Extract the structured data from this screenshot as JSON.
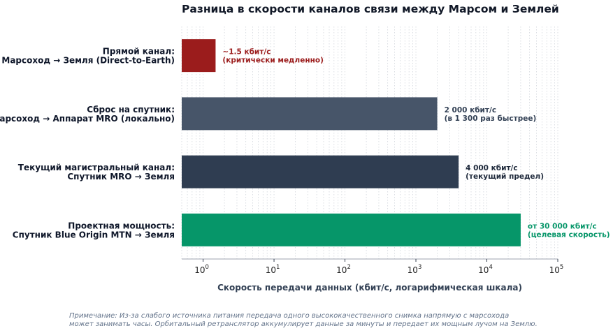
{
  "chart_data": {
    "type": "bar",
    "orientation": "horizontal",
    "title": "Разница в скорости каналов связи между Марсом и Землей",
    "xlabel": "Скорость передачи данных (кбит/с, логарифмическая шкала)",
    "xscale": "log",
    "xlim": [
      0.5,
      100000
    ],
    "grid": "x-minor-dotted",
    "categories": [
      {
        "line1": "Прямой канал:",
        "line2": "Марсоход → Земля (Direct-to-Earth)"
      },
      {
        "line1": "Сброс на спутник:",
        "line2": "Марсоход → Аппарат MRO (локально)"
      },
      {
        "line1": "Текущий магистральный канал:",
        "line2": "Спутник MRO → Земля"
      },
      {
        "line1": "Проектная мощность:",
        "line2": "Спутник Blue Origin MTN → Земля"
      }
    ],
    "values": [
      1.5,
      2000,
      4000,
      30000
    ],
    "colors": [
      "#9b1c1c",
      "#475569",
      "#2f3d51",
      "#069669"
    ],
    "data_labels": [
      {
        "line1": "~1.5 кбит/с",
        "line2": "(критически медленно)",
        "color": "#9b1c1c"
      },
      {
        "line1": "2 000 кбит/с",
        "line2": "(в 1 300 раз быстрее)",
        "color": "#334155"
      },
      {
        "line1": "4 000 кбит/с",
        "line2": "(текущий предел)",
        "color": "#1e293b"
      },
      {
        "line1": "от 30 000 кбит/с",
        "line2": "(целевая скорость)",
        "color": "#069669"
      }
    ],
    "ticks": [
      {
        "base": "10",
        "exp": "0"
      },
      {
        "base": "10",
        "exp": "1"
      },
      {
        "base": "10",
        "exp": "2"
      },
      {
        "base": "10",
        "exp": "3"
      },
      {
        "base": "10",
        "exp": "4"
      },
      {
        "base": "10",
        "exp": "5"
      }
    ]
  },
  "note": {
    "line1": "Примечание: Из-за слабого источника питания передача одного высококачественного снимка напрямую с марсохода",
    "line2": "может занимать часы. Орбитальный ретранслятор аккумулирует данные за минуты и передает их мощным лучом на Землю."
  }
}
